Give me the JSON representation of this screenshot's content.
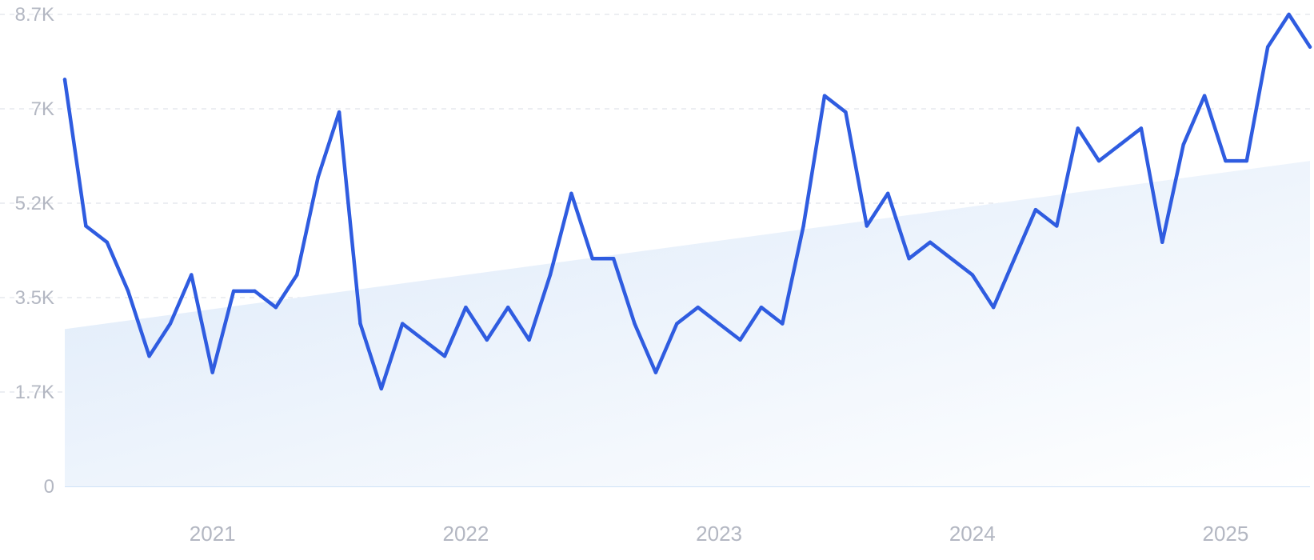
{
  "chart_data": {
    "type": "line",
    "title": "",
    "xlabel": "",
    "ylabel": "",
    "ylim": [
      0,
      8700
    ],
    "y_ticks": [
      {
        "value": 0,
        "label": "0"
      },
      {
        "value": 1740,
        "label": "1.7K"
      },
      {
        "value": 3480,
        "label": "3.5K"
      },
      {
        "value": 5220,
        "label": "5.2K"
      },
      {
        "value": 6960,
        "label": "7K"
      },
      {
        "value": 8700,
        "label": "8.7K"
      }
    ],
    "x_ticks": [
      {
        "value": "2021-01",
        "label": "2021"
      },
      {
        "value": "2022-01",
        "label": "2022"
      },
      {
        "value": "2023-01",
        "label": "2023"
      },
      {
        "value": "2024-01",
        "label": "2024"
      },
      {
        "value": "2025-01",
        "label": "2025"
      }
    ],
    "grid": true,
    "x_start": "2020-06",
    "x_end": "2025-05",
    "trend": {
      "start": 2900,
      "end": 6000
    },
    "colors": {
      "line": "#2f5ce0",
      "area_start": "#dce9f9",
      "area_end": "#ffffff",
      "grid": "#d9dde6",
      "tick_text": "#b3b7c2"
    },
    "series": [
      {
        "x": [
          "2020-06",
          "2020-07",
          "2020-08",
          "2020-09",
          "2020-10",
          "2020-11",
          "2020-12",
          "2021-01",
          "2021-02",
          "2021-03",
          "2021-04",
          "2021-05",
          "2021-06",
          "2021-07",
          "2021-08",
          "2021-09",
          "2021-10",
          "2021-11",
          "2021-12",
          "2022-01",
          "2022-02",
          "2022-03",
          "2022-04",
          "2022-05",
          "2022-06",
          "2022-07",
          "2022-08",
          "2022-09",
          "2022-10",
          "2022-11",
          "2022-12",
          "2023-01",
          "2023-02",
          "2023-03",
          "2023-04",
          "2023-05",
          "2023-06",
          "2023-07",
          "2023-08",
          "2023-09",
          "2023-10",
          "2023-11",
          "2023-12",
          "2024-01",
          "2024-02",
          "2024-03",
          "2024-04",
          "2024-05",
          "2024-06",
          "2024-07",
          "2024-08",
          "2024-09",
          "2024-10",
          "2024-11",
          "2024-12",
          "2025-01",
          "2025-02",
          "2025-03",
          "2025-04",
          "2025-05"
        ],
        "values": [
          7500,
          4800,
          4500,
          3600,
          2400,
          3000,
          3900,
          2100,
          3600,
          3600,
          3300,
          3900,
          5700,
          6900,
          3000,
          1800,
          3000,
          2700,
          2400,
          3300,
          2700,
          3300,
          2700,
          3900,
          5400,
          4200,
          4200,
          3000,
          2100,
          3000,
          3300,
          3000,
          2700,
          3300,
          3000,
          4800,
          7200,
          6900,
          4800,
          5400,
          4200,
          4500,
          4200,
          3900,
          3300,
          4200,
          5100,
          4800,
          6600,
          6000,
          6300,
          6600,
          4500,
          6300,
          7200,
          6000,
          6000,
          8100,
          8700,
          8100
        ]
      }
    ]
  }
}
